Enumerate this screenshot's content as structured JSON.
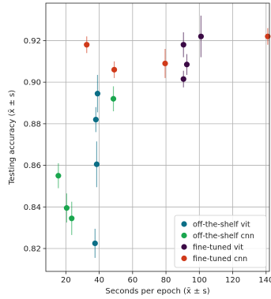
{
  "chart_data": {
    "type": "scatter",
    "xlabel": "Seconds per epoch (x̄ ± s)",
    "ylabel": "Testing accuracy (x̄ ± s)",
    "xlim": [
      8,
      142
    ],
    "ylim": [
      0.809,
      0.938
    ],
    "xticks": [
      20,
      40,
      60,
      80,
      100,
      120,
      140
    ],
    "yticks": [
      0.82,
      0.84,
      0.86,
      0.88,
      0.9,
      0.92
    ],
    "xtick_labels": [
      "20",
      "40",
      "60",
      "80",
      "100",
      "120",
      "140"
    ],
    "ytick_labels": [
      "0.82",
      "0.84",
      "0.86",
      "0.88",
      "0.90",
      "0.92"
    ],
    "grid": true,
    "legend_position": "bottom-right",
    "series": [
      {
        "name": "off-the-shelf vit",
        "color": "#0b6e86",
        "points": [
          {
            "x": 39.0,
            "y": 0.8945,
            "yerr": 0.009,
            "xerr": 0.5
          },
          {
            "x": 38.0,
            "y": 0.882,
            "yerr": 0.006,
            "xerr": 0.5
          },
          {
            "x": 38.5,
            "y": 0.8605,
            "yerr": 0.011,
            "xerr": 0.5
          },
          {
            "x": 37.5,
            "y": 0.8225,
            "yerr": 0.007,
            "xerr": 0.5
          }
        ]
      },
      {
        "name": "off-the-shelf cnn",
        "color": "#1aa64e",
        "points": [
          {
            "x": 15.5,
            "y": 0.855,
            "yerr": 0.006,
            "xerr": 0.5
          },
          {
            "x": 20.5,
            "y": 0.8395,
            "yerr": 0.007,
            "xerr": 0.5
          },
          {
            "x": 23.5,
            "y": 0.8345,
            "yerr": 0.008,
            "xerr": 0.5
          },
          {
            "x": 48.5,
            "y": 0.892,
            "yerr": 0.006,
            "xerr": 0.5
          }
        ]
      },
      {
        "name": "fine-tuned vit",
        "color": "#3b0a45",
        "points": [
          {
            "x": 90.5,
            "y": 0.918,
            "yerr": 0.006,
            "xerr": 1.0
          },
          {
            "x": 92.5,
            "y": 0.9085,
            "yerr": 0.005,
            "xerr": 1.0
          },
          {
            "x": 90.5,
            "y": 0.9015,
            "yerr": 0.004,
            "xerr": 1.0
          },
          {
            "x": 101.0,
            "y": 0.922,
            "yerr": 0.01,
            "xerr": 1.5
          }
        ]
      },
      {
        "name": "fine-tuned cnn",
        "color": "#d03a1a",
        "points": [
          {
            "x": 32.5,
            "y": 0.918,
            "yerr": 0.004,
            "xerr": 0.5
          },
          {
            "x": 49.0,
            "y": 0.906,
            "yerr": 0.004,
            "xerr": 0.5
          },
          {
            "x": 79.5,
            "y": 0.909,
            "yerr": 0.007,
            "xerr": 0.8
          },
          {
            "x": 141.0,
            "y": 0.922,
            "yerr": 0.004,
            "xerr": 0.8
          }
        ]
      }
    ]
  }
}
